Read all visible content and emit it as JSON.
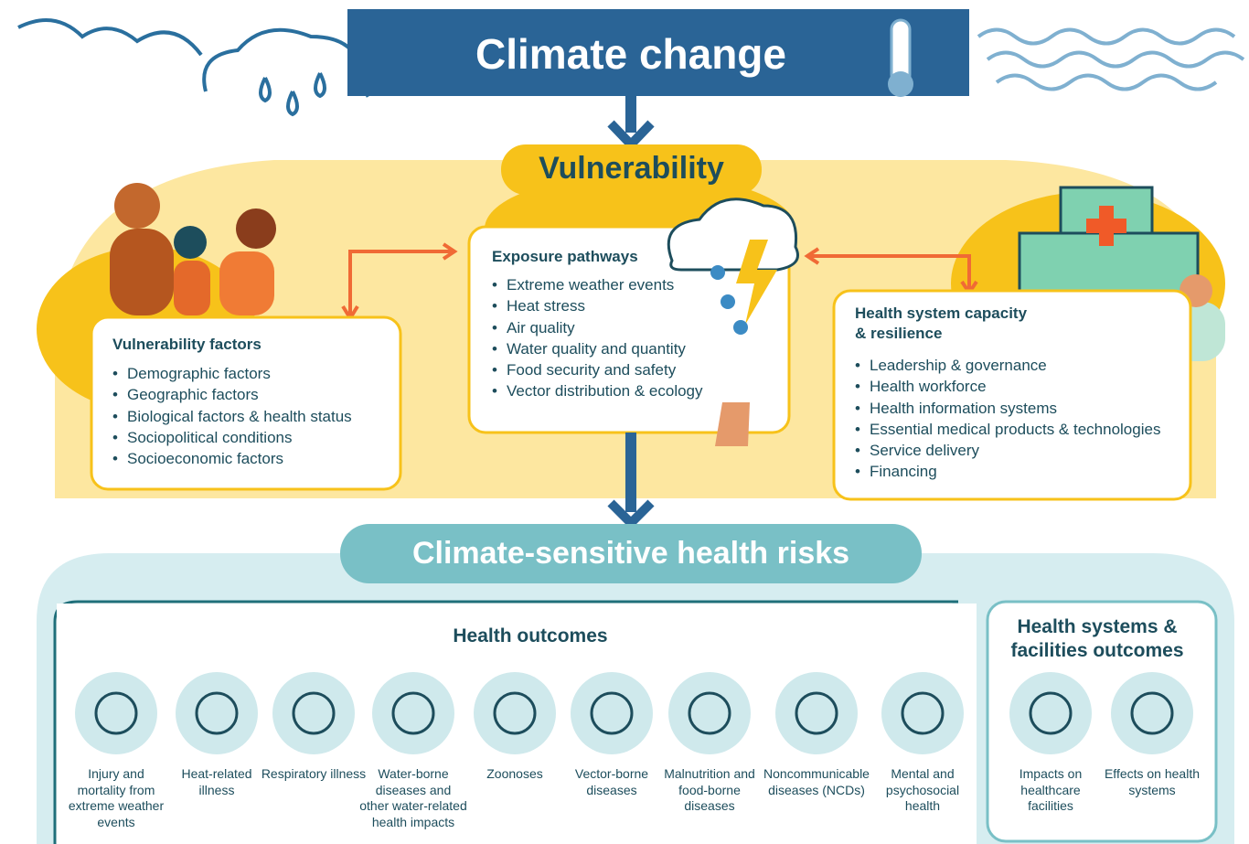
{
  "header": {
    "title": "Climate change"
  },
  "vulnerability": {
    "title": "Vulnerability"
  },
  "vulnerability_factors": {
    "title": "Vulnerability factors",
    "items": [
      "Demographic factors",
      "Geographic factors",
      "Biological factors & health status",
      "Sociopolitical conditions",
      "Socioeconomic factors"
    ]
  },
  "exposure_pathways": {
    "title": "Exposure pathways",
    "items": [
      "Extreme weather events",
      "Heat stress",
      "Air quality",
      "Water quality and quantity",
      "Food security and safety",
      "Vector distribution & ecology"
    ]
  },
  "health_system": {
    "title": "Health system capacity & resilience",
    "items": [
      "Leadership & governance",
      "Health workforce",
      "Health information systems",
      "Essential medical products & technologies",
      "Service delivery",
      "Financing"
    ]
  },
  "risks": {
    "title": "Climate-sensitive health risks"
  },
  "health_outcomes": {
    "title": "Health outcomes",
    "items": [
      "Injury and mortality from extreme weather events",
      "Heat-related illness",
      "Respiratory illness",
      "Water-borne diseases and other water-related health impacts",
      "Zoonoses",
      "Vector-borne diseases",
      "Malnutrition and food-borne diseases",
      "Noncommunicable diseases (NCDs)",
      "Mental and psychosocial health"
    ]
  },
  "facility_outcomes": {
    "title": "Health systems & facilities outcomes",
    "items": [
      "Impacts on healthcare facilities",
      "Effects on health systems"
    ]
  }
}
